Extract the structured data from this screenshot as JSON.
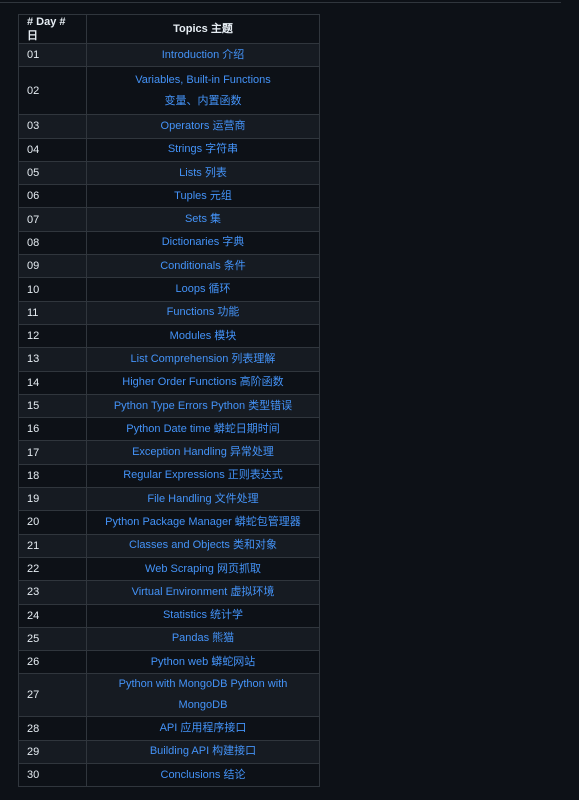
{
  "table": {
    "headers": {
      "day": "# Day # 日",
      "topic": "Topics 主题"
    },
    "rows": [
      {
        "day": "01",
        "topic": "Introduction 介绍"
      },
      {
        "day": "02",
        "topic_line1": "Variables, Built-in Functions",
        "topic_line2": "变量、内置函数"
      },
      {
        "day": "03",
        "topic": "Operators 运营商"
      },
      {
        "day": "04",
        "topic": "Strings 字符串"
      },
      {
        "day": "05",
        "topic": "Lists 列表"
      },
      {
        "day": "06",
        "topic": "Tuples 元组"
      },
      {
        "day": "07",
        "topic": "Sets 集"
      },
      {
        "day": "08",
        "topic": "Dictionaries 字典"
      },
      {
        "day": "09",
        "topic": "Conditionals 条件"
      },
      {
        "day": "10",
        "topic": "Loops 循环"
      },
      {
        "day": "11",
        "topic": "Functions 功能"
      },
      {
        "day": "12",
        "topic": "Modules 模块"
      },
      {
        "day": "13",
        "topic": "List Comprehension 列表理解"
      },
      {
        "day": "14",
        "topic": "Higher Order Functions 高阶函数"
      },
      {
        "day": "15",
        "topic": "Python Type Errors Python 类型错误"
      },
      {
        "day": "16",
        "topic": "Python Date time 蟒蛇日期时间"
      },
      {
        "day": "17",
        "topic": "Exception Handling 异常处理"
      },
      {
        "day": "18",
        "topic": "Regular Expressions 正则表达式"
      },
      {
        "day": "19",
        "topic": "File Handling 文件处理"
      },
      {
        "day": "20",
        "topic": "Python Package Manager 蟒蛇包管理器"
      },
      {
        "day": "21",
        "topic": "Classes and Objects 类和对象"
      },
      {
        "day": "22",
        "topic": "Web Scraping 网页抓取"
      },
      {
        "day": "23",
        "topic": "Virtual Environment 虚拟环境"
      },
      {
        "day": "24",
        "topic": "Statistics 统计学"
      },
      {
        "day": "25",
        "topic": "Pandas 熊猫"
      },
      {
        "day": "26",
        "topic": "Python web 蟒蛇网站"
      },
      {
        "day": "27",
        "topic": "Python with MongoDB Python with MongoDB"
      },
      {
        "day": "28",
        "topic": "API 应用程序接口"
      },
      {
        "day": "29",
        "topic": "Building API 构建接口"
      },
      {
        "day": "30",
        "topic": "Conclusions 结论"
      }
    ]
  }
}
